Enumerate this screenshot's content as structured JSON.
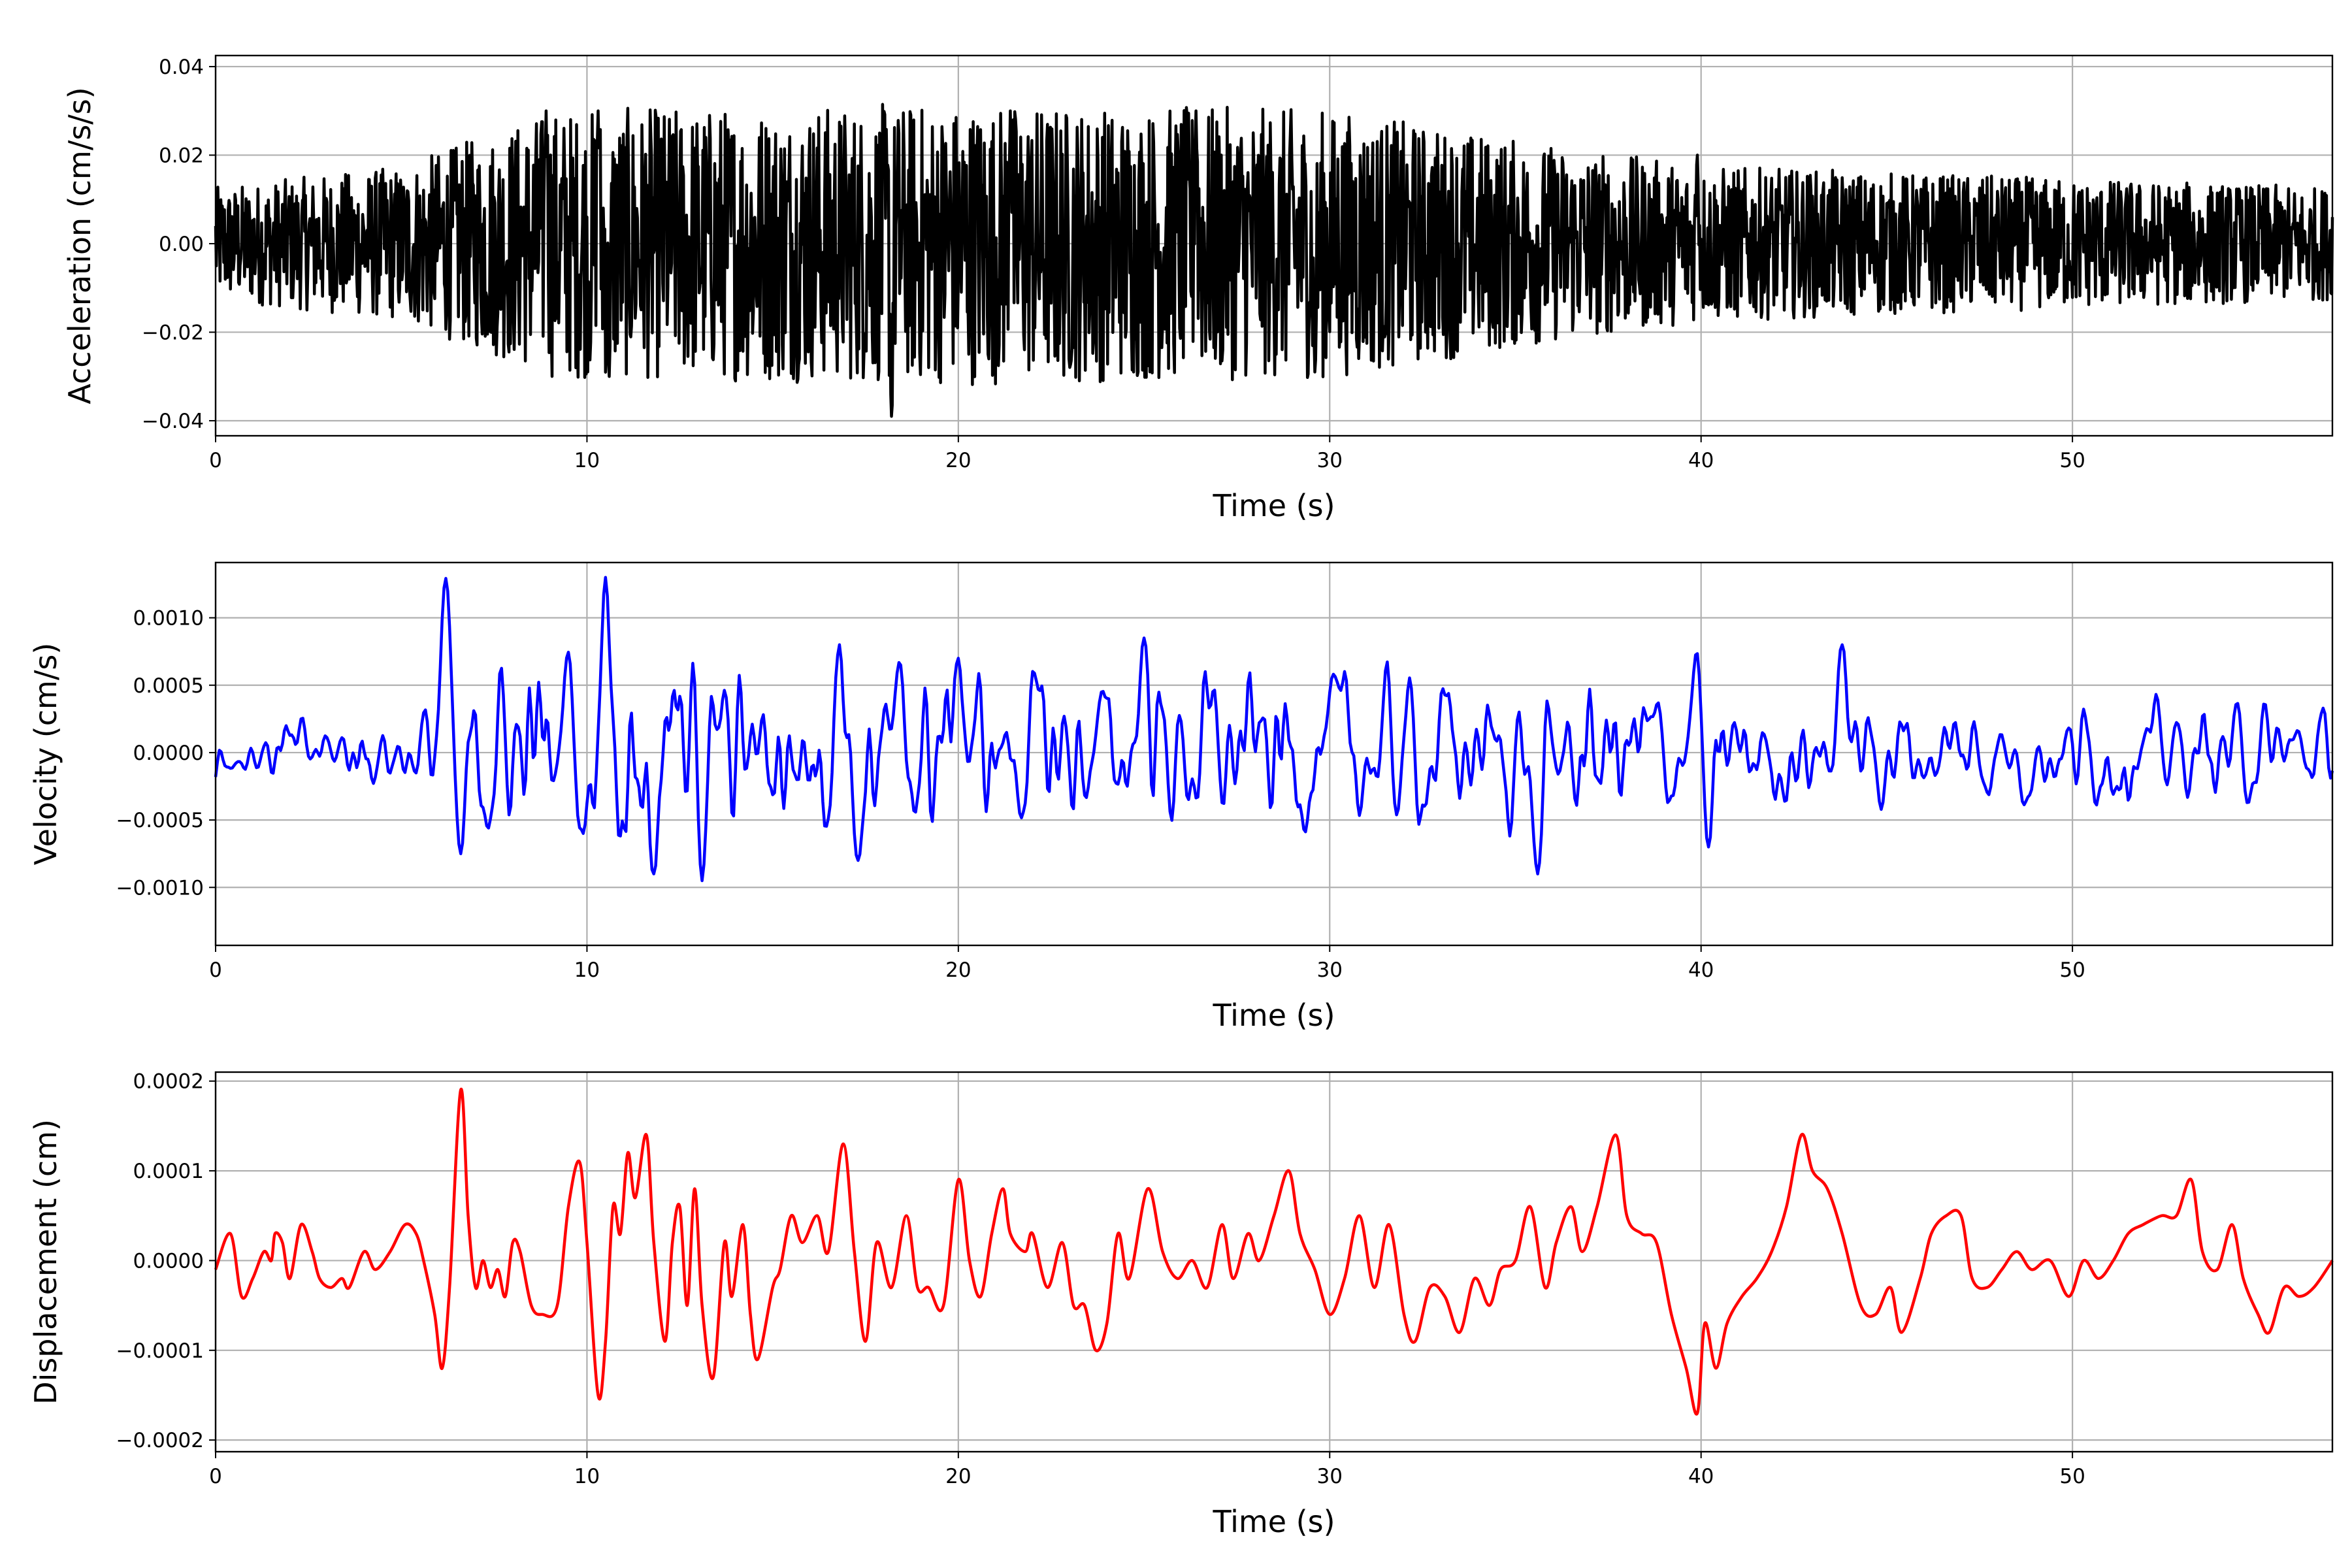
{
  "chart_data": [
    {
      "type": "line",
      "id": "acc",
      "title": "",
      "xlabel": "Time (s)",
      "ylabel": "Acceleration (cm/s/s)",
      "xlim": [
        0,
        57
      ],
      "ylim": [
        -0.0434,
        0.0425
      ],
      "xticks": [
        0,
        10,
        20,
        30,
        40,
        50
      ],
      "xtick_labels": [
        "0",
        "10",
        "20",
        "30",
        "40",
        "50"
      ],
      "yticks": [
        -0.04,
        -0.02,
        0.0,
        0.02,
        0.04
      ],
      "ytick_labels": [
        "−0.04",
        "−0.02",
        "0.00",
        "0.02",
        "0.04"
      ],
      "grid": true,
      "color": "#000000",
      "sample_dt": 0.02,
      "envelope": {
        "t": [
          0,
          5,
          9,
          20,
          30,
          36,
          40,
          57
        ],
        "amp": [
          0.008,
          0.011,
          0.019,
          0.02,
          0.019,
          0.014,
          0.011,
          0.008
        ]
      },
      "peaks": {
        "t": [
          8.9,
          10.3,
          10.6,
          18.2,
          21.4,
          26.4,
          29.6,
          39.9
        ],
        "value": [
          0.03,
          0.03,
          -0.03,
          -0.039,
          0.03,
          0.03,
          -0.029,
          0.02
        ]
      }
    },
    {
      "type": "line",
      "id": "vel",
      "xlabel": "Time (s)",
      "ylabel": "Velocity (cm/s)",
      "xlim": [
        0,
        57
      ],
      "ylim": [
        -0.00143,
        0.00141
      ],
      "xticks": [
        0,
        10,
        20,
        30,
        40,
        50
      ],
      "xtick_labels": [
        "0",
        "10",
        "20",
        "30",
        "40",
        "50"
      ],
      "yticks": [
        -0.001,
        -0.0005,
        0.0,
        0.0005,
        0.001
      ],
      "ytick_labels": [
        "−0.0010",
        "−0.0005",
        "0.0000",
        "0.0005",
        "0.0010"
      ],
      "grid": true,
      "color": "#0000ff",
      "sample_dt": 0.05,
      "envelope": {
        "t": [
          0,
          5,
          6,
          9,
          14,
          18,
          30,
          40,
          45,
          57
        ],
        "amp": [
          0.0002,
          0.0002,
          0.0004,
          0.0006,
          0.0006,
          0.0005,
          0.00045,
          0.0004,
          0.0003,
          0.00025
        ]
      },
      "peaks": {
        "t": [
          6.2,
          6.6,
          9.5,
          9.9,
          10.5,
          11.8,
          12.9,
          13.1,
          16.8,
          17.3,
          20.0,
          25.0,
          35.6,
          39.9,
          40.2,
          43.8
        ],
        "value": [
          0.0013,
          -0.00075,
          0.00075,
          -0.0006,
          0.0013,
          -0.0009,
          0.001,
          -0.00095,
          0.0008,
          -0.0008,
          0.0007,
          0.00085,
          -0.0009,
          0.0008,
          -0.0007,
          0.0008
        ]
      }
    },
    {
      "type": "line",
      "id": "disp",
      "xlabel": "Time (s)",
      "ylabel": "Displacement (cm)",
      "xlim": [
        0,
        57
      ],
      "ylim": [
        -0.000213,
        0.00021
      ],
      "xticks": [
        0,
        10,
        20,
        30,
        40,
        50
      ],
      "xtick_labels": [
        "0",
        "10",
        "20",
        "30",
        "40",
        "50"
      ],
      "yticks": [
        -0.0002,
        -0.0001,
        0.0,
        0.0001,
        0.0002
      ],
      "ytick_labels": [
        "−0.0002",
        "−0.0001",
        "0.0000",
        "0.0001",
        "0.0002"
      ],
      "grid": true,
      "color": "#ff0000",
      "y_unit_scale": 0.0001,
      "x": [
        0,
        0.4,
        0.7,
        1.0,
        1.3,
        1.5,
        1.6,
        1.8,
        2.0,
        2.3,
        2.6,
        2.8,
        3.1,
        3.4,
        3.6,
        4.0,
        4.3,
        4.7,
        5.1,
        5.4,
        5.6,
        5.9,
        6.1,
        6.3,
        6.6,
        6.8,
        7.0,
        7.2,
        7.4,
        7.6,
        7.8,
        8.0,
        8.2,
        8.5,
        8.8,
        9.2,
        9.5,
        9.8,
        10.0,
        10.3,
        10.5,
        10.7,
        10.9,
        11.1,
        11.3,
        11.6,
        11.8,
        12.1,
        12.3,
        12.5,
        12.7,
        12.9,
        13.1,
        13.4,
        13.7,
        13.9,
        14.2,
        14.4,
        14.6,
        15.0,
        15.2,
        15.5,
        15.8,
        16.2,
        16.5,
        16.9,
        17.2,
        17.5,
        17.8,
        18.2,
        18.6,
        18.9,
        19.2,
        19.6,
        20.0,
        20.3,
        20.6,
        20.9,
        21.2,
        21.4,
        21.8,
        22.0,
        22.4,
        22.8,
        23.1,
        23.4,
        23.7,
        24.0,
        24.3,
        24.6,
        25.1,
        25.5,
        25.9,
        26.3,
        26.7,
        27.1,
        27.4,
        27.8,
        28.1,
        28.5,
        28.9,
        29.2,
        29.6,
        30.0,
        30.4,
        30.8,
        31.2,
        31.6,
        32.0,
        32.3,
        32.7,
        33.1,
        33.5,
        33.9,
        34.3,
        34.6,
        35.0,
        35.4,
        35.8,
        36.1,
        36.5,
        36.8,
        37.2,
        37.7,
        38.0,
        38.4,
        38.8,
        39.2,
        39.6,
        39.9,
        40.1,
        40.4,
        40.7,
        41.1,
        41.5,
        41.9,
        42.3,
        42.7,
        43.0,
        43.4,
        43.8,
        44.3,
        44.7,
        45.1,
        45.4,
        45.9,
        46.2,
        46.6,
        47.0,
        47.3,
        47.7,
        48.1,
        48.5,
        48.9,
        49.4,
        49.9,
        50.3,
        50.7,
        51.1,
        51.5,
        51.9,
        52.4,
        52.8,
        53.2,
        53.5,
        53.9,
        54.3,
        54.6,
        55.0,
        55.3,
        55.7,
        56.1,
        56.5,
        57.0
      ],
      "y": [
        -0.1,
        0.3,
        -0.4,
        -0.2,
        0.1,
        0.0,
        0.3,
        0.2,
        -0.2,
        0.4,
        0.1,
        -0.2,
        -0.3,
        -0.2,
        -0.3,
        0.1,
        -0.1,
        0.1,
        0.4,
        0.3,
        0.0,
        -0.6,
        -1.2,
        -0.3,
        1.9,
        0.5,
        -0.3,
        0.0,
        -0.3,
        -0.1,
        -0.4,
        0.2,
        0.1,
        -0.5,
        -0.6,
        -0.5,
        0.6,
        1.1,
        0.2,
        -1.5,
        -0.9,
        0.6,
        0.3,
        1.2,
        0.7,
        1.4,
        0.2,
        -0.9,
        0.2,
        0.6,
        -0.5,
        0.8,
        -0.5,
        -1.3,
        0.2,
        -0.4,
        0.4,
        -0.6,
        -1.1,
        -0.3,
        -0.1,
        0.5,
        0.2,
        0.5,
        0.1,
        1.3,
        0.1,
        -0.9,
        0.2,
        -0.3,
        0.5,
        -0.3,
        -0.3,
        -0.5,
        0.9,
        0.0,
        -0.4,
        0.3,
        0.8,
        0.3,
        0.1,
        0.3,
        -0.3,
        0.2,
        -0.5,
        -0.5,
        -1.0,
        -0.7,
        0.3,
        -0.2,
        0.8,
        0.1,
        -0.2,
        0.0,
        -0.3,
        0.4,
        -0.2,
        0.3,
        0.0,
        0.5,
        1.0,
        0.3,
        -0.1,
        -0.6,
        -0.2,
        0.5,
        -0.3,
        0.4,
        -0.6,
        -0.9,
        -0.3,
        -0.4,
        -0.8,
        -0.2,
        -0.5,
        -0.1,
        0.0,
        0.6,
        -0.3,
        0.2,
        0.6,
        0.1,
        0.6,
        1.4,
        0.5,
        0.3,
        0.2,
        -0.6,
        -1.2,
        -1.7,
        -0.7,
        -1.2,
        -0.7,
        -0.4,
        -0.2,
        0.1,
        0.6,
        1.4,
        1.0,
        0.8,
        0.3,
        -0.5,
        -0.6,
        -0.3,
        -0.8,
        -0.2,
        0.3,
        0.5,
        0.5,
        -0.2,
        -0.3,
        -0.1,
        0.1,
        -0.1,
        0.0,
        -0.4,
        0.0,
        -0.2,
        0.0,
        0.3,
        0.4,
        0.5,
        0.5,
        0.9,
        0.1,
        -0.1,
        0.4,
        -0.2,
        -0.6,
        -0.8,
        -0.3,
        -0.4,
        -0.3,
        0.0
      ]
    }
  ]
}
